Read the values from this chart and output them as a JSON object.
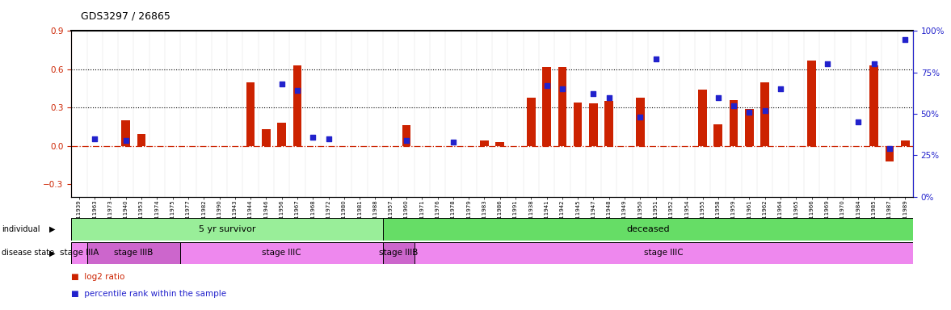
{
  "title": "GDS3297 / 26865",
  "samples": [
    "GSM311939",
    "GSM311963",
    "GSM311973",
    "GSM311940",
    "GSM311953",
    "GSM311974",
    "GSM311975",
    "GSM311977",
    "GSM311982",
    "GSM311990",
    "GSM311943",
    "GSM311944",
    "GSM311946",
    "GSM311956",
    "GSM311967",
    "GSM311968",
    "GSM311972",
    "GSM311980",
    "GSM311981",
    "GSM311988",
    "GSM311957",
    "GSM311960",
    "GSM311971",
    "GSM311976",
    "GSM311978",
    "GSM311979",
    "GSM311983",
    "GSM311986",
    "GSM311991",
    "GSM311938",
    "GSM311941",
    "GSM311942",
    "GSM311945",
    "GSM311947",
    "GSM311948",
    "GSM311949",
    "GSM311950",
    "GSM311951",
    "GSM311952",
    "GSM311954",
    "GSM311955",
    "GSM311958",
    "GSM311959",
    "GSM311961",
    "GSM311962",
    "GSM311964",
    "GSM311965",
    "GSM311966",
    "GSM311969",
    "GSM311970",
    "GSM311984",
    "GSM311985",
    "GSM311987",
    "GSM311989"
  ],
  "log2_ratio": [
    0.0,
    0.0,
    0.0,
    0.2,
    0.09,
    0.0,
    0.0,
    0.0,
    0.0,
    0.0,
    0.0,
    0.5,
    0.13,
    0.18,
    0.63,
    0.0,
    0.0,
    0.0,
    0.0,
    0.0,
    0.0,
    0.16,
    0.0,
    0.0,
    0.0,
    0.0,
    0.04,
    0.03,
    0.0,
    0.38,
    0.62,
    0.62,
    0.34,
    0.33,
    0.35,
    0.0,
    0.38,
    0.0,
    0.0,
    0.0,
    0.44,
    0.17,
    0.36,
    0.29,
    0.5,
    0.0,
    0.0,
    0.67,
    0.0,
    0.0,
    0.0,
    0.63,
    -0.12,
    0.04
  ],
  "percentile_raw": [
    0.0,
    35.0,
    0.0,
    34.0,
    0.0,
    0.0,
    0.0,
    0.0,
    0.0,
    0.0,
    0.0,
    0.0,
    0.0,
    68.0,
    64.0,
    36.0,
    35.0,
    0.0,
    0.0,
    0.0,
    0.0,
    34.0,
    0.0,
    0.0,
    33.0,
    0.0,
    0.0,
    0.0,
    0.0,
    0.0,
    67.0,
    65.0,
    0.0,
    62.0,
    60.0,
    0.0,
    48.0,
    83.0,
    0.0,
    0.0,
    0.0,
    60.0,
    55.0,
    51.0,
    52.0,
    65.0,
    0.0,
    0.0,
    80.0,
    0.0,
    45.0,
    80.0,
    29.0,
    95.0
  ],
  "individual_groups": [
    {
      "label": "5 yr survivor",
      "start": 0,
      "end": 20,
      "color": "#99EE99"
    },
    {
      "label": "deceased",
      "start": 20,
      "end": 54,
      "color": "#66DD66"
    }
  ],
  "disease_groups": [
    {
      "label": "stage IIIA",
      "start": 0,
      "end": 1,
      "color": "#EE88EE"
    },
    {
      "label": "stage IIIB",
      "start": 1,
      "end": 7,
      "color": "#CC66CC"
    },
    {
      "label": "stage IIIC",
      "start": 7,
      "end": 20,
      "color": "#EE88EE"
    },
    {
      "label": "stage IIIB",
      "start": 20,
      "end": 22,
      "color": "#CC66CC"
    },
    {
      "label": "stage IIIC",
      "start": 22,
      "end": 54,
      "color": "#EE88EE"
    }
  ],
  "ylim_left": [
    -0.4,
    0.9
  ],
  "ylim_right": [
    0,
    100
  ],
  "yticks_left": [
    -0.3,
    0.0,
    0.3,
    0.6,
    0.9
  ],
  "yticks_right": [
    0,
    25,
    50,
    75,
    100
  ],
  "bar_color": "#CC2200",
  "dot_color": "#2222CC",
  "zero_line_color": "#CC2200",
  "left_axis_color": "#CC2200",
  "right_axis_color": "#2222CC"
}
